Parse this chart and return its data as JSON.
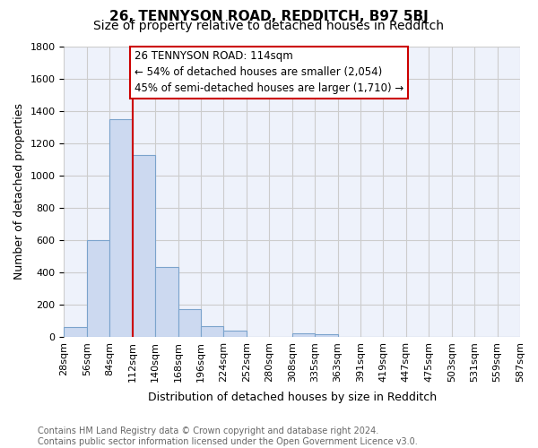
{
  "title": "26, TENNYSON ROAD, REDDITCH, B97 5BJ",
  "subtitle": "Size of property relative to detached houses in Redditch",
  "xlabel": "Distribution of detached houses by size in Redditch",
  "ylabel": "Number of detached properties",
  "bin_labels": [
    "28sqm",
    "56sqm",
    "84sqm",
    "112sqm",
    "140sqm",
    "168sqm",
    "196sqm",
    "224sqm",
    "252sqm",
    "280sqm",
    "308sqm",
    "335sqm",
    "363sqm",
    "391sqm",
    "419sqm",
    "447sqm",
    "475sqm",
    "503sqm",
    "531sqm",
    "559sqm",
    "587sqm"
  ],
  "bar_heights": [
    60,
    600,
    1350,
    1125,
    430,
    170,
    65,
    40,
    0,
    0,
    20,
    15,
    0,
    0,
    0,
    0,
    0,
    0,
    0,
    0
  ],
  "bar_color": "#ccd9f0",
  "bar_edge_color": "#7ba3cc",
  "vline_x": 3.0,
  "vline_color": "#cc0000",
  "annotation_lines": [
    "26 TENNYSON ROAD: 114sqm",
    "← 54% of detached houses are smaller (2,054)",
    "45% of semi-detached houses are larger (1,710) →"
  ],
  "annotation_box_color": "#cc0000",
  "ylim": [
    0,
    1800
  ],
  "yticks": [
    0,
    200,
    400,
    600,
    800,
    1000,
    1200,
    1400,
    1600,
    1800
  ],
  "grid_color": "#cccccc",
  "bg_color": "#eef2fb",
  "footer_text": "Contains HM Land Registry data © Crown copyright and database right 2024.\nContains public sector information licensed under the Open Government Licence v3.0.",
  "title_fontsize": 11,
  "subtitle_fontsize": 10,
  "axis_label_fontsize": 9,
  "tick_fontsize": 8,
  "annotation_fontsize": 8.5,
  "footer_fontsize": 7,
  "footer_color": "#666666"
}
